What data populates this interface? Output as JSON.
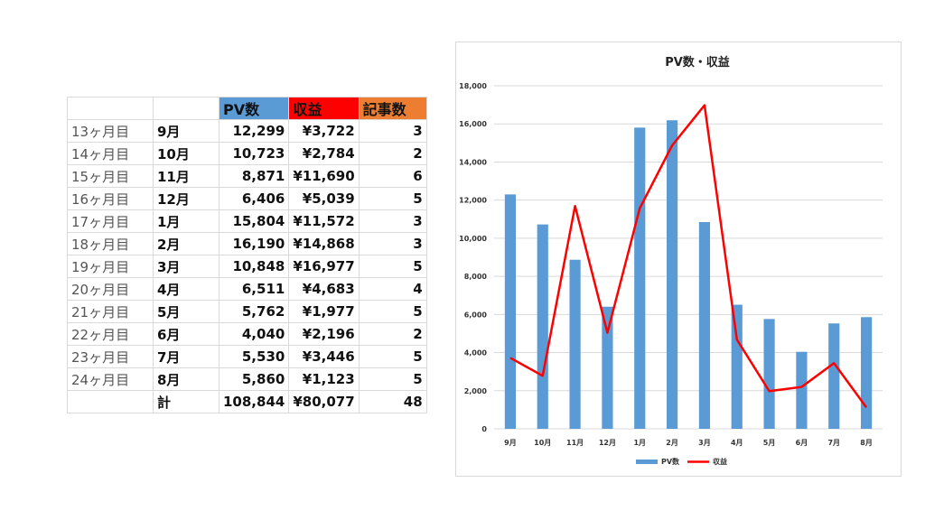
{
  "table": {
    "headers": [
      "",
      "",
      "PV数",
      "収益",
      "記事数"
    ],
    "header_colors": [
      "",
      "",
      "#5b9bd5",
      "#ff0000",
      "#ed7d31"
    ],
    "rows": [
      {
        "label": "13ヶ月目",
        "month": "9月",
        "pv": "12,299",
        "revenue": "¥3,722",
        "articles": "3"
      },
      {
        "label": "14ヶ月目",
        "month": "10月",
        "pv": "10,723",
        "revenue": "¥2,784",
        "articles": "2"
      },
      {
        "label": "15ヶ月目",
        "month": "11月",
        "pv": "8,871",
        "revenue": "¥11,690",
        "articles": "6"
      },
      {
        "label": "16ヶ月目",
        "month": "12月",
        "pv": "6,406",
        "revenue": "¥5,039",
        "articles": "5"
      },
      {
        "label": "17ヶ月目",
        "month": "1月",
        "pv": "15,804",
        "revenue": "¥11,572",
        "articles": "3"
      },
      {
        "label": "18ヶ月目",
        "month": "2月",
        "pv": "16,190",
        "revenue": "¥14,868",
        "articles": "3"
      },
      {
        "label": "19ヶ月目",
        "month": "3月",
        "pv": "10,848",
        "revenue": "¥16,977",
        "articles": "5"
      },
      {
        "label": "20ヶ月目",
        "month": "4月",
        "pv": "6,511",
        "revenue": "¥4,683",
        "articles": "4"
      },
      {
        "label": "21ヶ月目",
        "month": "5月",
        "pv": "5,762",
        "revenue": "¥1,977",
        "articles": "5"
      },
      {
        "label": "22ヶ月目",
        "month": "6月",
        "pv": "4,040",
        "revenue": "¥2,196",
        "articles": "2"
      },
      {
        "label": "23ヶ月目",
        "month": "7月",
        "pv": "5,530",
        "revenue": "¥3,446",
        "articles": "5"
      },
      {
        "label": "24ヶ月目",
        "month": "8月",
        "pv": "5,860",
        "revenue": "¥1,123",
        "articles": "5"
      }
    ],
    "total": {
      "label": "",
      "month": "計",
      "pv": "108,844",
      "revenue": "¥80,077",
      "articles": "48"
    }
  },
  "chart_data": {
    "type": "bar",
    "title": "PV数・収益",
    "categories": [
      "9月",
      "10月",
      "11月",
      "12月",
      "1月",
      "2月",
      "3月",
      "4月",
      "5月",
      "6月",
      "7月",
      "8月"
    ],
    "series": [
      {
        "name": "PV数",
        "type": "bar",
        "color": "#5b9bd5",
        "values": [
          12299,
          10723,
          8871,
          6406,
          15804,
          16190,
          10848,
          6511,
          5762,
          4040,
          5530,
          5860
        ]
      },
      {
        "name": "収益",
        "type": "line",
        "color": "#ff0000",
        "values": [
          3722,
          2784,
          11690,
          5039,
          11572,
          14868,
          16977,
          4683,
          1977,
          2196,
          3446,
          1123
        ]
      }
    ],
    "ylim": [
      0,
      18000
    ],
    "yticks": [
      0,
      2000,
      4000,
      6000,
      8000,
      10000,
      12000,
      14000,
      16000,
      18000
    ],
    "ytick_labels": [
      "0",
      "2,000",
      "4,000",
      "6,000",
      "8,000",
      "10,000",
      "12,000",
      "14,000",
      "16,000",
      "18,000"
    ],
    "grid": true,
    "legend": "bottom"
  }
}
